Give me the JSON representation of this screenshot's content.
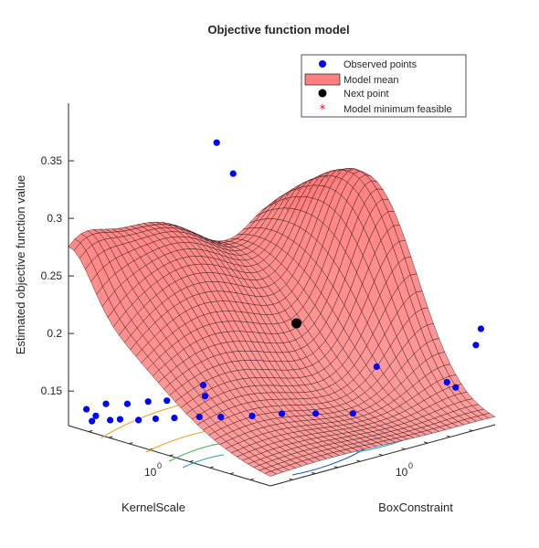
{
  "chart_data": {
    "type": "surface3d",
    "title": "Objective function model",
    "xlabel": "KernelScale",
    "ylabel": "BoxConstraint",
    "zlabel": "Estimated objective function value",
    "x_scale": "log",
    "y_scale": "log",
    "x_tick_labels": [
      "10^0"
    ],
    "y_tick_labels": [
      "10^0"
    ],
    "z_ticks": [
      0.15,
      0.2,
      0.25,
      0.3,
      0.35
    ],
    "zlim": [
      0.12,
      0.4
    ],
    "legend": {
      "position": "top-right",
      "entries": [
        {
          "label": "Observed points",
          "marker": "circle",
          "color": "#0000ff"
        },
        {
          "label": "Model mean",
          "marker": "patch",
          "color": "#ff8080"
        },
        {
          "label": "Next point",
          "marker": "circle",
          "color": "#000000"
        },
        {
          "label": "Model minimum feasible",
          "marker": "asterisk",
          "color": "#ff0000"
        }
      ]
    },
    "observed_points": [
      {
        "kernel_scale": 0.9,
        "box_constraint": 0.02,
        "value": 0.38
      },
      {
        "kernel_scale": 1.0,
        "box_constraint": 0.05,
        "value": 0.35
      },
      {
        "kernel_scale": 300,
        "box_constraint": 900,
        "value": 0.185
      },
      {
        "kernel_scale": 400,
        "box_constraint": 950,
        "value": 0.2
      },
      {
        "kernel_scale": 5,
        "box_constraint": 80,
        "value": 0.16
      },
      {
        "kernel_scale": 80,
        "box_constraint": 500,
        "value": 0.15
      },
      {
        "kernel_scale": 100,
        "box_constraint": 700,
        "value": 0.145
      },
      {
        "kernel_scale": 0.01,
        "box_constraint": 0.5,
        "value": 0.14
      },
      {
        "kernel_scale": 0.02,
        "box_constraint": 0.3,
        "value": 0.135
      },
      {
        "kernel_scale": 0.005,
        "box_constraint": 0.1,
        "value": 0.13
      },
      {
        "kernel_scale": 0.003,
        "box_constraint": 0.05,
        "value": 0.13
      },
      {
        "kernel_scale": 0.002,
        "box_constraint": 0.02,
        "value": 0.13
      },
      {
        "kernel_scale": 0.001,
        "box_constraint": 0.01,
        "value": 0.13
      },
      {
        "kernel_scale": 0.001,
        "box_constraint": 0.003,
        "value": 0.13
      },
      {
        "kernel_scale": 0.003,
        "box_constraint": 0.002,
        "value": 0.13
      },
      {
        "kernel_scale": 0.005,
        "box_constraint": 0.001,
        "value": 0.13
      },
      {
        "kernel_scale": 0.008,
        "box_constraint": 0.002,
        "value": 0.13
      },
      {
        "kernel_scale": 0.01,
        "box_constraint": 0.003,
        "value": 0.13
      },
      {
        "kernel_scale": 0.02,
        "box_constraint": 0.005,
        "value": 0.13
      },
      {
        "kernel_scale": 0.03,
        "box_constraint": 0.01,
        "value": 0.13
      },
      {
        "kernel_scale": 0.05,
        "box_constraint": 0.02,
        "value": 0.13
      },
      {
        "kernel_scale": 0.1,
        "box_constraint": 0.05,
        "value": 0.13
      },
      {
        "kernel_scale": 0.2,
        "box_constraint": 0.1,
        "value": 0.13
      },
      {
        "kernel_scale": 0.5,
        "box_constraint": 0.3,
        "value": 0.13
      },
      {
        "kernel_scale": 1,
        "box_constraint": 1,
        "value": 0.13
      },
      {
        "kernel_scale": 3,
        "box_constraint": 3,
        "value": 0.13
      },
      {
        "kernel_scale": 10,
        "box_constraint": 10,
        "value": 0.13
      }
    ],
    "next_point": {
      "value": 0.21
    },
    "colors": {
      "surface": "#ff8080",
      "mesh": "#1a0a0a",
      "observed": "#0000ff",
      "next": "#000000",
      "model_min": "#ff0000"
    }
  }
}
